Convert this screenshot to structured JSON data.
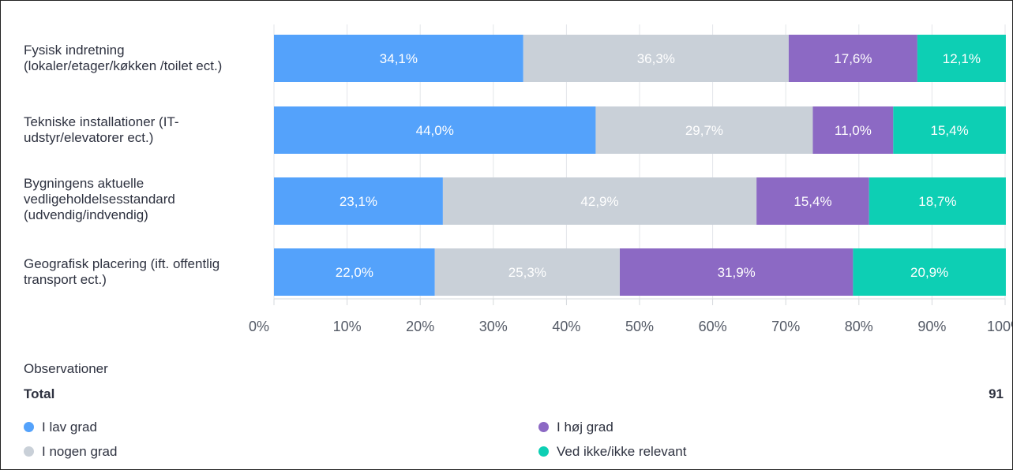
{
  "chart_data": {
    "type": "bar",
    "orientation": "horizontal",
    "stacked": true,
    "categories": [
      "Fysisk indretning\n(lokaler/etager/køkken /toilet ect.)",
      "Tekniske installationer (IT-\nudstyr/elevatorer ect.)",
      "Bygningens aktuelle\nvedligeholdelsesstandard\n(udvendig/indvendig)",
      "Geografisk placering (ift. offentlig\ntransport ect.)"
    ],
    "series": [
      {
        "name": "I lav grad",
        "color": "#54a2fb",
        "values": [
          34.1,
          44.0,
          23.1,
          22.0
        ],
        "labels": [
          "34,1%",
          "44,0%",
          "23,1%",
          "22,0%"
        ]
      },
      {
        "name": "I nogen grad",
        "color": "#c9d0d8",
        "values": [
          36.3,
          29.7,
          42.9,
          25.3
        ],
        "labels": [
          "36,3%",
          "29,7%",
          "42,9%",
          "25,3%"
        ]
      },
      {
        "name": "I høj grad",
        "color": "#8c69c4",
        "values": [
          17.6,
          11.0,
          15.4,
          31.9
        ],
        "labels": [
          "17,6%",
          "11,0%",
          "15,4%",
          "31,9%"
        ]
      },
      {
        "name": "Ved ikke/ikke relevant",
        "color": "#0dcfb4",
        "values": [
          12.1,
          15.4,
          18.7,
          20.9
        ],
        "labels": [
          "12,1%",
          "15,4%",
          "18,7%",
          "20,9%"
        ]
      }
    ],
    "xlim": [
      0,
      100
    ],
    "x_ticks": [
      "0%",
      "10%",
      "20%",
      "30%",
      "40%",
      "50%",
      "60%",
      "70%",
      "80%",
      "90%",
      "100%"
    ],
    "grid": true,
    "legend_position": "bottom"
  },
  "footer": {
    "observations_title": "Observationer",
    "total_label": "Total",
    "total_value": "91"
  },
  "legend": [
    {
      "label": "I lav grad",
      "color": "#54a2fb"
    },
    {
      "label": "I nogen grad",
      "color": "#c9d0d8"
    },
    {
      "label": "I høj grad",
      "color": "#8c69c4"
    },
    {
      "label": "Ved ikke/ikke relevant",
      "color": "#0dcfb4"
    }
  ]
}
